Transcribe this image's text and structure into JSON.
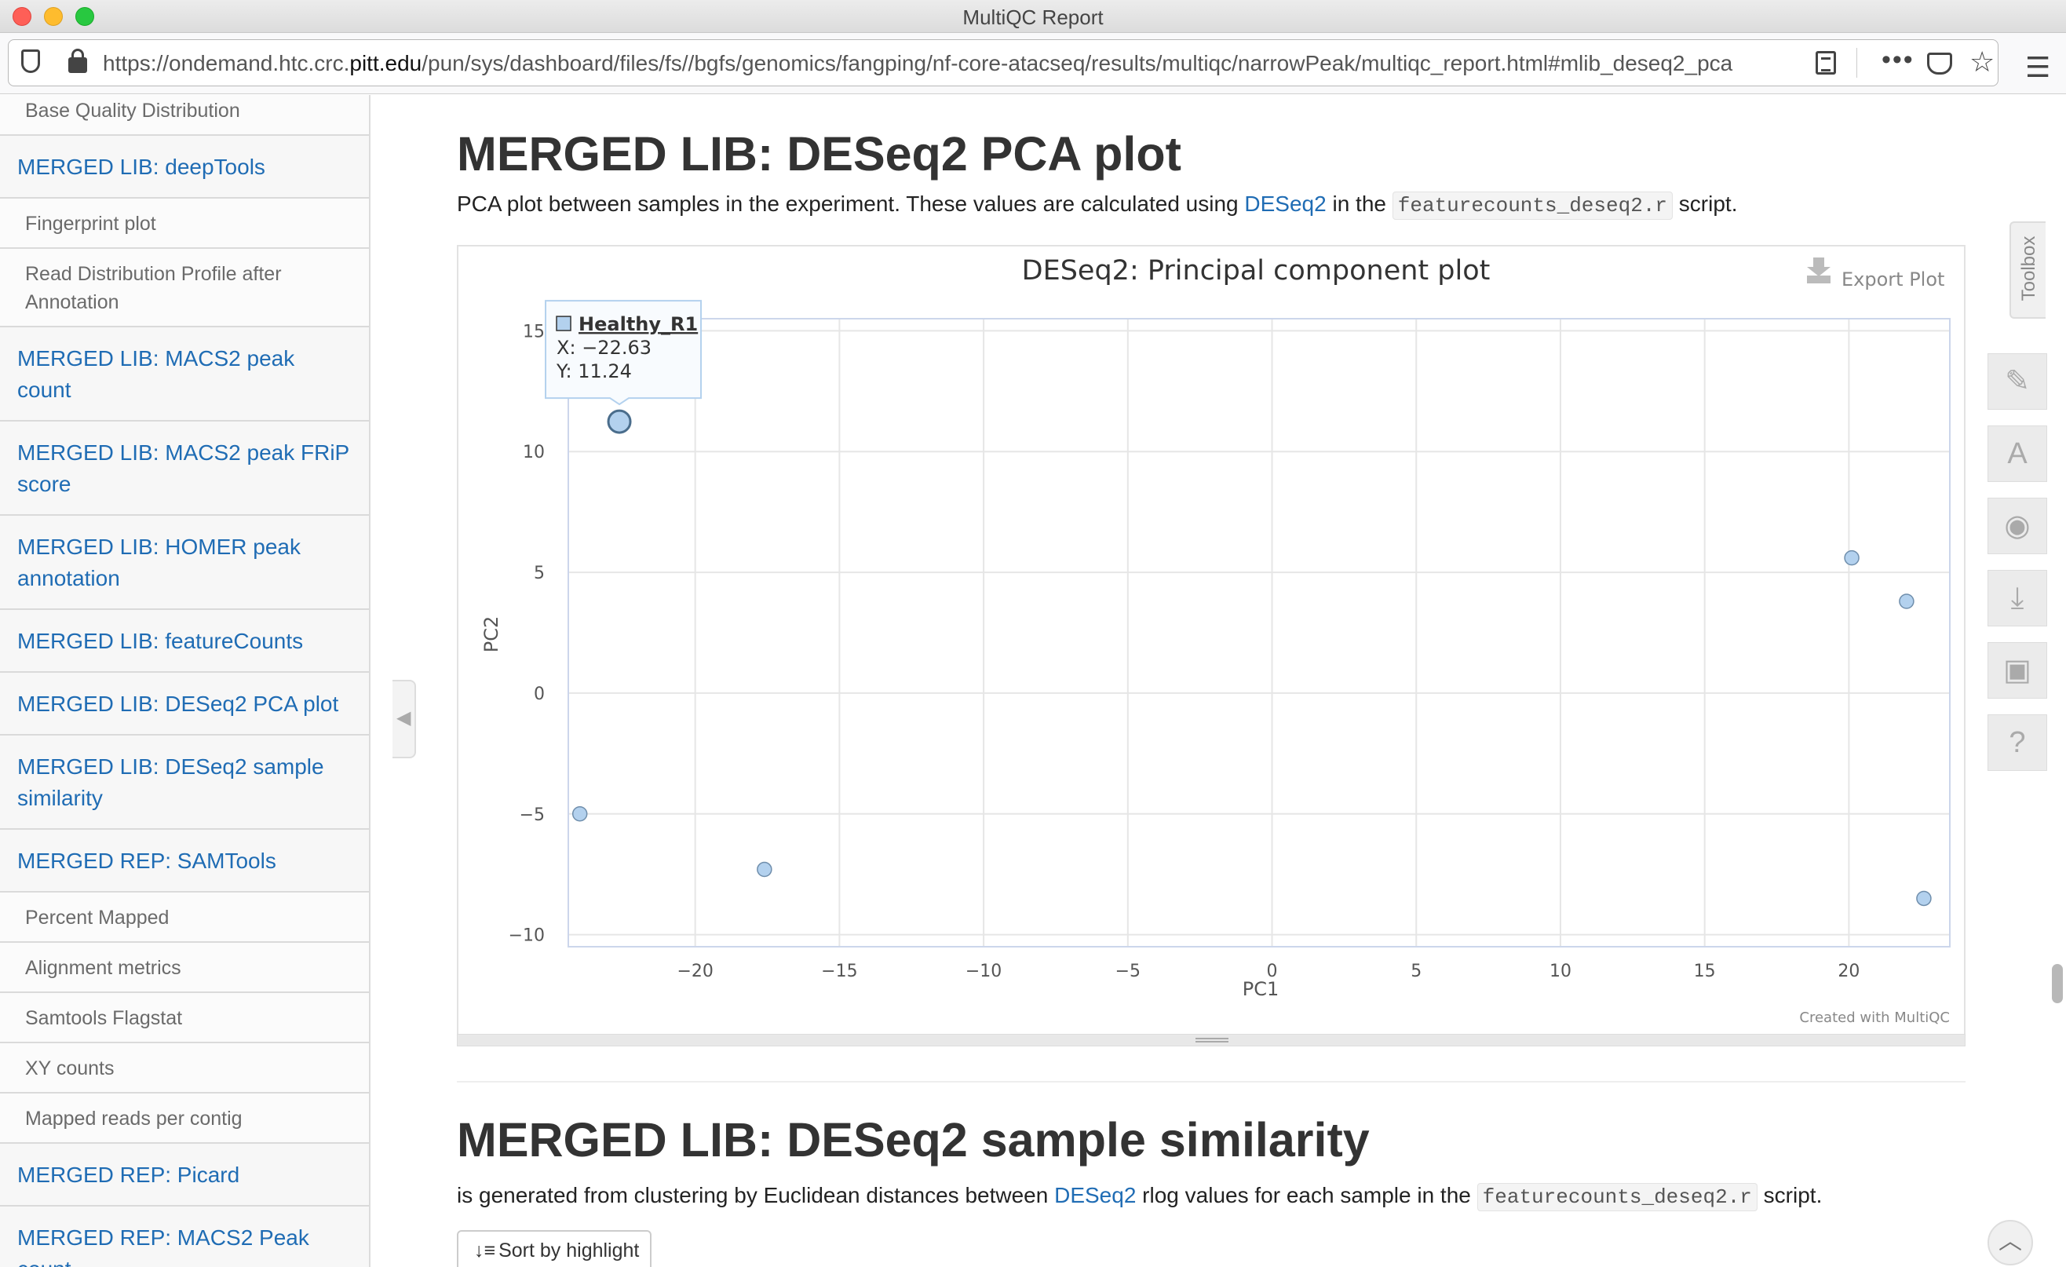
{
  "window": {
    "title": "MultiQC Report"
  },
  "browser": {
    "url_prefix": "https://ondemand.htc.crc.",
    "url_host": "pitt.edu",
    "url_rest": "/pun/sys/dashboard/files/fs//bgfs/genomics/fangping/nf-core-atacseq/results/multiqc/narrowPeak/multiqc_report.html#mlib_deseq2_pca",
    "more_glyph": "•••",
    "star_glyph": "☆",
    "menu_glyph": "☰"
  },
  "sidebar": {
    "items": [
      {
        "label": "Base Quality Distribution",
        "level": "sub"
      },
      {
        "label": "MERGED LIB: deepTools",
        "level": "main"
      },
      {
        "label": "Fingerprint plot",
        "level": "sub"
      },
      {
        "label": "Read Distribution Profile after",
        "label2": "Annotation",
        "level": "sub"
      },
      {
        "label": "MERGED LIB: MACS2 peak",
        "label2": "count",
        "level": "main"
      },
      {
        "label": "MERGED LIB: MACS2 peak FRiP",
        "label2": "score",
        "level": "main"
      },
      {
        "label": "MERGED LIB: HOMER peak",
        "label2": "annotation",
        "level": "main"
      },
      {
        "label": "MERGED LIB: featureCounts",
        "level": "main"
      },
      {
        "label": "MERGED LIB: DESeq2 PCA plot",
        "level": "main"
      },
      {
        "label": "MERGED LIB: DESeq2 sample",
        "label2": "similarity",
        "level": "main"
      },
      {
        "label": "MERGED REP: SAMTools",
        "level": "main"
      },
      {
        "label": "Percent Mapped",
        "level": "sub"
      },
      {
        "label": "Alignment metrics",
        "level": "sub"
      },
      {
        "label": "Samtools Flagstat",
        "level": "sub"
      },
      {
        "label": "XY counts",
        "level": "sub"
      },
      {
        "label": "Mapped reads per contig",
        "level": "sub"
      },
      {
        "label": "MERGED REP: Picard",
        "level": "main"
      },
      {
        "label": "MERGED REP: MACS2 Peak",
        "label2": "count",
        "level": "main"
      }
    ],
    "collapse_glyph": "◀"
  },
  "section1": {
    "title": "MERGED LIB: DESeq2 PCA plot",
    "desc_before": "PCA plot between samples in the experiment. These values are calculated using ",
    "link": "DESeq2",
    "desc_mid": " in the ",
    "code": "featurecounts_deseq2.r",
    "desc_after": " script."
  },
  "plot": {
    "export_label": "Export Plot",
    "credit": "Created with MultiQC",
    "tooltip": {
      "name": "Healthy_R1",
      "x_label": "X: -22.63",
      "y_label": "Y: 11.24"
    }
  },
  "chart_data": {
    "type": "scatter",
    "title": "DESeq2: Principal component plot",
    "xlabel": "PC1",
    "ylabel": "PC2",
    "xlim": [
      -24.4,
      23.5
    ],
    "ylim": [
      -10.5,
      15.5
    ],
    "x_ticks": [
      -20,
      -15,
      -10,
      -5,
      0,
      5,
      10,
      15,
      20
    ],
    "y_ticks": [
      -10,
      -5,
      0,
      5,
      10,
      15
    ],
    "grid": true,
    "marker_color": "#b3d1ee",
    "points": [
      {
        "x": -22.63,
        "y": 11.24,
        "label": "Healthy_R1",
        "highlight": true
      },
      {
        "x": -24.0,
        "y": -5.0
      },
      {
        "x": -17.6,
        "y": -7.3
      },
      {
        "x": 20.1,
        "y": 5.6
      },
      {
        "x": 22.0,
        "y": 3.8
      },
      {
        "x": 22.6,
        "y": -8.5
      }
    ]
  },
  "section2": {
    "title": "MERGED LIB: DESeq2 sample similarity",
    "desc_before": "is generated from clustering by Euclidean distances between ",
    "link": "DESeq2",
    "desc_mid": " rlog values for each sample in the ",
    "code": "featurecounts_deseq2.r",
    "desc_after": " script.",
    "sort_button": "Sort by highlight"
  },
  "toolbox": {
    "label": "Toolbox",
    "buttons": [
      {
        "name": "pin-icon",
        "glyph": "✎"
      },
      {
        "name": "font-icon",
        "glyph": "A"
      },
      {
        "name": "hide-eye-icon",
        "glyph": "◉"
      },
      {
        "name": "download-icon",
        "glyph": "⤓"
      },
      {
        "name": "save-icon",
        "glyph": "▣"
      },
      {
        "name": "help-icon",
        "glyph": "?"
      }
    ],
    "scroll_top_glyph": "︿"
  }
}
